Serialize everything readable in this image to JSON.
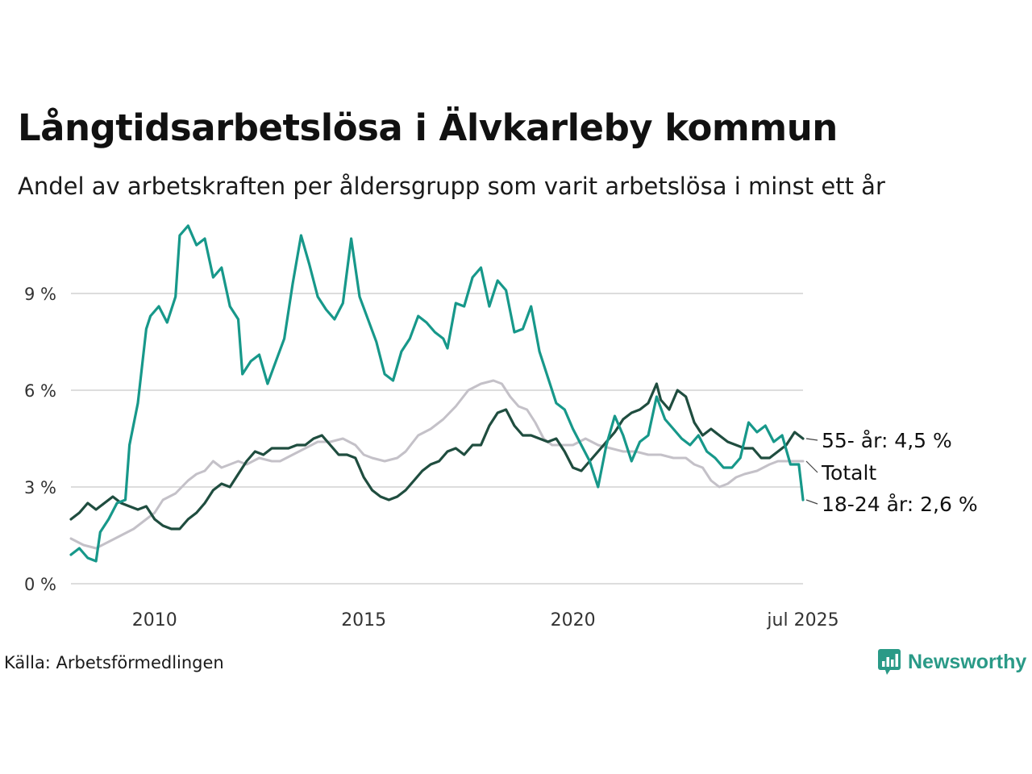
{
  "title": "Långtidsarbetslösa i Älvkarleby kommun",
  "subtitle": "Andel av arbetskraften per åldersgrupp som varit arbetslösa i minst ett år",
  "source": "Källa: Arbetsförmedlingen",
  "brand": "Newsworthy",
  "colors": {
    "brand": "#2a9a87",
    "youth": "#17988a",
    "older": "#1f4d3f",
    "total": "#c4c1c8",
    "grid": "#dddddd",
    "text": "#111111"
  },
  "chart_data": {
    "type": "line",
    "ylim": [
      0,
      11.5
    ],
    "yticks": [
      {
        "value": 0,
        "label": "0 %"
      },
      {
        "value": 3,
        "label": "3 %"
      },
      {
        "value": 6,
        "label": "6 %"
      },
      {
        "value": 9,
        "label": "9 %"
      }
    ],
    "xlim": [
      2008.0,
      2025.5
    ],
    "xticks": [
      {
        "value": 2010,
        "label": "2010"
      },
      {
        "value": 2015,
        "label": "2015"
      },
      {
        "value": 2020,
        "label": "2020"
      },
      {
        "value": 2025.5,
        "label": "jul 2025"
      }
    ],
    "grid": true,
    "series": [
      {
        "key": "total",
        "label": "Totalt",
        "end_value": null,
        "points": [
          [
            2008.0,
            1.4
          ],
          [
            2008.3,
            1.2
          ],
          [
            2008.6,
            1.1
          ],
          [
            2008.9,
            1.3
          ],
          [
            2009.2,
            1.5
          ],
          [
            2009.5,
            1.7
          ],
          [
            2009.8,
            2.0
          ],
          [
            2010.0,
            2.2
          ],
          [
            2010.2,
            2.6
          ],
          [
            2010.5,
            2.8
          ],
          [
            2010.8,
            3.2
          ],
          [
            2011.0,
            3.4
          ],
          [
            2011.2,
            3.5
          ],
          [
            2011.4,
            3.8
          ],
          [
            2011.6,
            3.6
          ],
          [
            2011.8,
            3.7
          ],
          [
            2012.0,
            3.8
          ],
          [
            2012.2,
            3.7
          ],
          [
            2012.5,
            3.9
          ],
          [
            2012.8,
            3.8
          ],
          [
            2013.0,
            3.8
          ],
          [
            2013.3,
            4.0
          ],
          [
            2013.6,
            4.2
          ],
          [
            2013.9,
            4.4
          ],
          [
            2014.2,
            4.4
          ],
          [
            2014.5,
            4.5
          ],
          [
            2014.8,
            4.3
          ],
          [
            2015.0,
            4.0
          ],
          [
            2015.2,
            3.9
          ],
          [
            2015.5,
            3.8
          ],
          [
            2015.8,
            3.9
          ],
          [
            2016.0,
            4.1
          ],
          [
            2016.3,
            4.6
          ],
          [
            2016.6,
            4.8
          ],
          [
            2016.9,
            5.1
          ],
          [
            2017.2,
            5.5
          ],
          [
            2017.5,
            6.0
          ],
          [
            2017.8,
            6.2
          ],
          [
            2018.1,
            6.3
          ],
          [
            2018.3,
            6.2
          ],
          [
            2018.5,
            5.8
          ],
          [
            2018.7,
            5.5
          ],
          [
            2018.9,
            5.4
          ],
          [
            2019.1,
            5.0
          ],
          [
            2019.3,
            4.5
          ],
          [
            2019.5,
            4.3
          ],
          [
            2019.8,
            4.3
          ],
          [
            2020.0,
            4.3
          ],
          [
            2020.3,
            4.5
          ],
          [
            2020.6,
            4.3
          ],
          [
            2020.9,
            4.2
          ],
          [
            2021.2,
            4.1
          ],
          [
            2021.5,
            4.1
          ],
          [
            2021.8,
            4.0
          ],
          [
            2022.1,
            4.0
          ],
          [
            2022.4,
            3.9
          ],
          [
            2022.7,
            3.9
          ],
          [
            2022.9,
            3.7
          ],
          [
            2023.1,
            3.6
          ],
          [
            2023.3,
            3.2
          ],
          [
            2023.5,
            3.0
          ],
          [
            2023.7,
            3.1
          ],
          [
            2023.9,
            3.3
          ],
          [
            2024.1,
            3.4
          ],
          [
            2024.4,
            3.5
          ],
          [
            2024.7,
            3.7
          ],
          [
            2024.9,
            3.8
          ],
          [
            2025.1,
            3.8
          ],
          [
            2025.3,
            3.8
          ],
          [
            2025.5,
            3.8
          ]
        ]
      },
      {
        "key": "older",
        "label": "55- år: 4,5 %",
        "end_value": 4.5,
        "points": [
          [
            2008.0,
            2.0
          ],
          [
            2008.2,
            2.2
          ],
          [
            2008.4,
            2.5
          ],
          [
            2008.6,
            2.3
          ],
          [
            2008.8,
            2.5
          ],
          [
            2009.0,
            2.7
          ],
          [
            2009.2,
            2.5
          ],
          [
            2009.4,
            2.4
          ],
          [
            2009.6,
            2.3
          ],
          [
            2009.8,
            2.4
          ],
          [
            2010.0,
            2.0
          ],
          [
            2010.2,
            1.8
          ],
          [
            2010.4,
            1.7
          ],
          [
            2010.6,
            1.7
          ],
          [
            2010.8,
            2.0
          ],
          [
            2011.0,
            2.2
          ],
          [
            2011.2,
            2.5
          ],
          [
            2011.4,
            2.9
          ],
          [
            2011.6,
            3.1
          ],
          [
            2011.8,
            3.0
          ],
          [
            2012.0,
            3.4
          ],
          [
            2012.2,
            3.8
          ],
          [
            2012.4,
            4.1
          ],
          [
            2012.6,
            4.0
          ],
          [
            2012.8,
            4.2
          ],
          [
            2013.0,
            4.2
          ],
          [
            2013.2,
            4.2
          ],
          [
            2013.4,
            4.3
          ],
          [
            2013.6,
            4.3
          ],
          [
            2013.8,
            4.5
          ],
          [
            2014.0,
            4.6
          ],
          [
            2014.2,
            4.3
          ],
          [
            2014.4,
            4.0
          ],
          [
            2014.6,
            4.0
          ],
          [
            2014.8,
            3.9
          ],
          [
            2015.0,
            3.3
          ],
          [
            2015.2,
            2.9
          ],
          [
            2015.4,
            2.7
          ],
          [
            2015.6,
            2.6
          ],
          [
            2015.8,
            2.7
          ],
          [
            2016.0,
            2.9
          ],
          [
            2016.2,
            3.2
          ],
          [
            2016.4,
            3.5
          ],
          [
            2016.6,
            3.7
          ],
          [
            2016.8,
            3.8
          ],
          [
            2017.0,
            4.1
          ],
          [
            2017.2,
            4.2
          ],
          [
            2017.4,
            4.0
          ],
          [
            2017.6,
            4.3
          ],
          [
            2017.8,
            4.3
          ],
          [
            2018.0,
            4.9
          ],
          [
            2018.2,
            5.3
          ],
          [
            2018.4,
            5.4
          ],
          [
            2018.6,
            4.9
          ],
          [
            2018.8,
            4.6
          ],
          [
            2019.0,
            4.6
          ],
          [
            2019.2,
            4.5
          ],
          [
            2019.4,
            4.4
          ],
          [
            2019.6,
            4.5
          ],
          [
            2019.8,
            4.1
          ],
          [
            2020.0,
            3.6
          ],
          [
            2020.2,
            3.5
          ],
          [
            2020.4,
            3.8
          ],
          [
            2020.6,
            4.1
          ],
          [
            2020.8,
            4.4
          ],
          [
            2021.0,
            4.7
          ],
          [
            2021.2,
            5.1
          ],
          [
            2021.4,
            5.3
          ],
          [
            2021.6,
            5.4
          ],
          [
            2021.8,
            5.6
          ],
          [
            2022.0,
            6.2
          ],
          [
            2022.1,
            5.7
          ],
          [
            2022.3,
            5.4
          ],
          [
            2022.5,
            6.0
          ],
          [
            2022.7,
            5.8
          ],
          [
            2022.9,
            5.0
          ],
          [
            2023.1,
            4.6
          ],
          [
            2023.3,
            4.8
          ],
          [
            2023.5,
            4.6
          ],
          [
            2023.7,
            4.4
          ],
          [
            2023.9,
            4.3
          ],
          [
            2024.1,
            4.2
          ],
          [
            2024.3,
            4.2
          ],
          [
            2024.5,
            3.9
          ],
          [
            2024.7,
            3.9
          ],
          [
            2024.9,
            4.1
          ],
          [
            2025.1,
            4.3
          ],
          [
            2025.3,
            4.7
          ],
          [
            2025.5,
            4.5
          ]
        ]
      },
      {
        "key": "youth",
        "label": "18-24 år: 2,6 %",
        "end_value": 2.6,
        "points": [
          [
            2008.0,
            0.9
          ],
          [
            2008.2,
            1.1
          ],
          [
            2008.4,
            0.8
          ],
          [
            2008.6,
            0.7
          ],
          [
            2008.7,
            1.6
          ],
          [
            2008.9,
            2.0
          ],
          [
            2009.1,
            2.5
          ],
          [
            2009.3,
            2.6
          ],
          [
            2009.4,
            4.3
          ],
          [
            2009.6,
            5.6
          ],
          [
            2009.8,
            7.9
          ],
          [
            2009.9,
            8.3
          ],
          [
            2010.1,
            8.6
          ],
          [
            2010.3,
            8.1
          ],
          [
            2010.5,
            8.9
          ],
          [
            2010.6,
            10.8
          ],
          [
            2010.8,
            11.1
          ],
          [
            2011.0,
            10.5
          ],
          [
            2011.2,
            10.7
          ],
          [
            2011.4,
            9.5
          ],
          [
            2011.6,
            9.8
          ],
          [
            2011.8,
            8.6
          ],
          [
            2012.0,
            8.2
          ],
          [
            2012.1,
            6.5
          ],
          [
            2012.3,
            6.9
          ],
          [
            2012.5,
            7.1
          ],
          [
            2012.7,
            6.2
          ],
          [
            2012.9,
            6.9
          ],
          [
            2013.1,
            7.6
          ],
          [
            2013.3,
            9.3
          ],
          [
            2013.5,
            10.8
          ],
          [
            2013.7,
            9.9
          ],
          [
            2013.9,
            8.9
          ],
          [
            2014.1,
            8.5
          ],
          [
            2014.3,
            8.2
          ],
          [
            2014.5,
            8.7
          ],
          [
            2014.7,
            10.7
          ],
          [
            2014.9,
            8.9
          ],
          [
            2015.1,
            8.2
          ],
          [
            2015.3,
            7.5
          ],
          [
            2015.5,
            6.5
          ],
          [
            2015.7,
            6.3
          ],
          [
            2015.9,
            7.2
          ],
          [
            2016.1,
            7.6
          ],
          [
            2016.3,
            8.3
          ],
          [
            2016.5,
            8.1
          ],
          [
            2016.7,
            7.8
          ],
          [
            2016.9,
            7.6
          ],
          [
            2017.0,
            7.3
          ],
          [
            2017.2,
            8.7
          ],
          [
            2017.4,
            8.6
          ],
          [
            2017.6,
            9.5
          ],
          [
            2017.8,
            9.8
          ],
          [
            2018.0,
            8.6
          ],
          [
            2018.2,
            9.4
          ],
          [
            2018.4,
            9.1
          ],
          [
            2018.6,
            7.8
          ],
          [
            2018.8,
            7.9
          ],
          [
            2019.0,
            8.6
          ],
          [
            2019.2,
            7.2
          ],
          [
            2019.4,
            6.4
          ],
          [
            2019.6,
            5.6
          ],
          [
            2019.8,
            5.4
          ],
          [
            2020.0,
            4.8
          ],
          [
            2020.2,
            4.3
          ],
          [
            2020.4,
            3.8
          ],
          [
            2020.6,
            3.0
          ],
          [
            2020.8,
            4.3
          ],
          [
            2021.0,
            5.2
          ],
          [
            2021.2,
            4.6
          ],
          [
            2021.4,
            3.8
          ],
          [
            2021.6,
            4.4
          ],
          [
            2021.8,
            4.6
          ],
          [
            2022.0,
            5.8
          ],
          [
            2022.2,
            5.1
          ],
          [
            2022.4,
            4.8
          ],
          [
            2022.6,
            4.5
          ],
          [
            2022.8,
            4.3
          ],
          [
            2023.0,
            4.6
          ],
          [
            2023.2,
            4.1
          ],
          [
            2023.4,
            3.9
          ],
          [
            2023.6,
            3.6
          ],
          [
            2023.8,
            3.6
          ],
          [
            2024.0,
            3.9
          ],
          [
            2024.2,
            5.0
          ],
          [
            2024.4,
            4.7
          ],
          [
            2024.6,
            4.9
          ],
          [
            2024.8,
            4.4
          ],
          [
            2025.0,
            4.6
          ],
          [
            2025.2,
            3.7
          ],
          [
            2025.4,
            3.7
          ],
          [
            2025.5,
            2.6
          ]
        ]
      }
    ]
  }
}
